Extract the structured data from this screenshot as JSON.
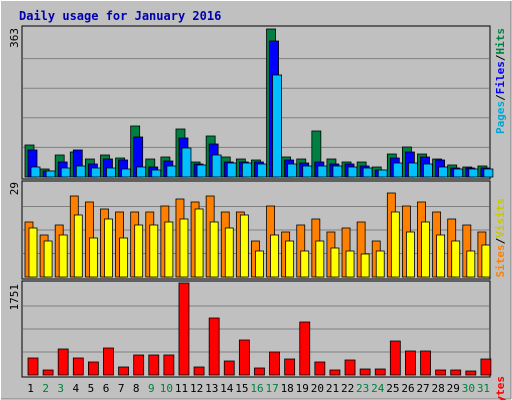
{
  "title": "Daily usage for January 2016",
  "colors": {
    "background": "#c0c0c0",
    "plot_background": "#c0c0c0",
    "grid": "#808080",
    "title": "#0000b0",
    "hits": "#008040",
    "files": "#0000ff",
    "pages": "#00c0ff",
    "visits": "#ffff00",
    "sites": "#ff8000",
    "kbytes": "#ff0000",
    "weekday": "#000000",
    "weekend": "#008040"
  },
  "side_labels": {
    "top": [
      {
        "text": "Pages",
        "color": "#00a8d8"
      },
      {
        "text": "/",
        "color": "#000000"
      },
      {
        "text": "Files",
        "color": "#0000ff"
      },
      {
        "text": "/",
        "color": "#000000"
      },
      {
        "text": "Hits",
        "color": "#008040"
      }
    ],
    "middle": [
      {
        "text": "Sites",
        "color": "#ff8000"
      },
      {
        "text": "/",
        "color": "#000000"
      },
      {
        "text": "Visits",
        "color": "#c8c800"
      }
    ],
    "bottom": [
      {
        "text": "KBytes",
        "color": "#ff0000"
      }
    ]
  },
  "chart_data": [
    {
      "type": "bar",
      "title": "Daily usage for January 2016",
      "ylabel": "Pages / Files / Hits",
      "ymax_label": "363",
      "ylim": [
        0,
        363
      ],
      "grid": true,
      "categories": [
        "1",
        "2",
        "3",
        "4",
        "5",
        "6",
        "7",
        "8",
        "9",
        "10",
        "11",
        "12",
        "13",
        "14",
        "15",
        "16",
        "17",
        "18",
        "19",
        "20",
        "21",
        "22",
        "23",
        "24",
        "25",
        "26",
        "27",
        "28",
        "29",
        "30",
        "31"
      ],
      "weekend_days": [
        "2",
        "3",
        "9",
        "10",
        "16",
        "17",
        "23",
        "24",
        "30",
        "31"
      ],
      "series": [
        {
          "name": "Hits",
          "values": [
            78,
            20,
            53,
            62,
            45,
            54,
            46,
            125,
            45,
            50,
            117,
            38,
            100,
            50,
            43,
            42,
            363,
            48,
            45,
            112,
            45,
            38,
            38,
            24,
            56,
            73,
            57,
            45,
            30,
            25,
            28
          ]
        },
        {
          "name": "Files",
          "values": [
            66,
            14,
            37,
            67,
            32,
            44,
            41,
            99,
            25,
            40,
            95,
            32,
            82,
            36,
            37,
            36,
            333,
            42,
            35,
            36,
            33,
            31,
            28,
            18,
            46,
            62,
            50,
            41,
            22,
            21,
            22
          ]
        },
        {
          "name": "Pages",
          "values": [
            25,
            14,
            23,
            26,
            23,
            21,
            20,
            25,
            18,
            27,
            70,
            30,
            55,
            34,
            35,
            32,
            250,
            33,
            28,
            27,
            26,
            24,
            22,
            17,
            35,
            34,
            32,
            25,
            19,
            20,
            19
          ]
        }
      ]
    },
    {
      "type": "bar",
      "ylabel": "Sites / Visits",
      "ymax_label": "29",
      "ylim": [
        0,
        29
      ],
      "grid": true,
      "categories": [
        "1",
        "2",
        "3",
        "4",
        "5",
        "6",
        "7",
        "8",
        "9",
        "10",
        "11",
        "12",
        "13",
        "14",
        "15",
        "16",
        "17",
        "18",
        "19",
        "20",
        "21",
        "22",
        "23",
        "24",
        "25",
        "26",
        "27",
        "28",
        "29",
        "30",
        "31"
      ],
      "series": [
        {
          "name": "Visits",
          "values": [
            15,
            11,
            13,
            19,
            12,
            18,
            12,
            16,
            16,
            17,
            18,
            21,
            17,
            15,
            19,
            8,
            13,
            11,
            8,
            11,
            9,
            8,
            7,
            8,
            20,
            14,
            17,
            13,
            11,
            8,
            10
          ]
        },
        {
          "name": "Sites",
          "values": [
            17,
            13,
            16,
            25,
            23,
            21,
            20,
            20,
            20,
            22,
            24,
            23,
            25,
            20,
            20,
            11,
            22,
            14,
            16,
            18,
            14,
            15,
            17,
            11,
            26,
            22,
            23,
            20,
            18,
            16,
            14
          ]
        }
      ]
    },
    {
      "type": "bar",
      "ylabel": "KBytes",
      "ymax_label": "1751",
      "ylim": [
        0,
        1751
      ],
      "grid": true,
      "categories": [
        "1",
        "2",
        "3",
        "4",
        "5",
        "6",
        "7",
        "8",
        "9",
        "10",
        "11",
        "12",
        "13",
        "14",
        "15",
        "16",
        "17",
        "18",
        "19",
        "20",
        "21",
        "22",
        "23",
        "24",
        "25",
        "26",
        "27",
        "28",
        "29",
        "30",
        "31"
      ],
      "series": [
        {
          "name": "KBytes",
          "values": [
            320,
            95,
            500,
            320,
            240,
            520,
            160,
            390,
            390,
            390,
            1751,
            160,
            1080,
            270,
            660,
            130,
            430,
            310,
            1000,
            240,
            95,
            290,
            110,
            110,
            640,
            460,
            450,
            95,
            95,
            85,
            300
          ]
        }
      ]
    }
  ]
}
